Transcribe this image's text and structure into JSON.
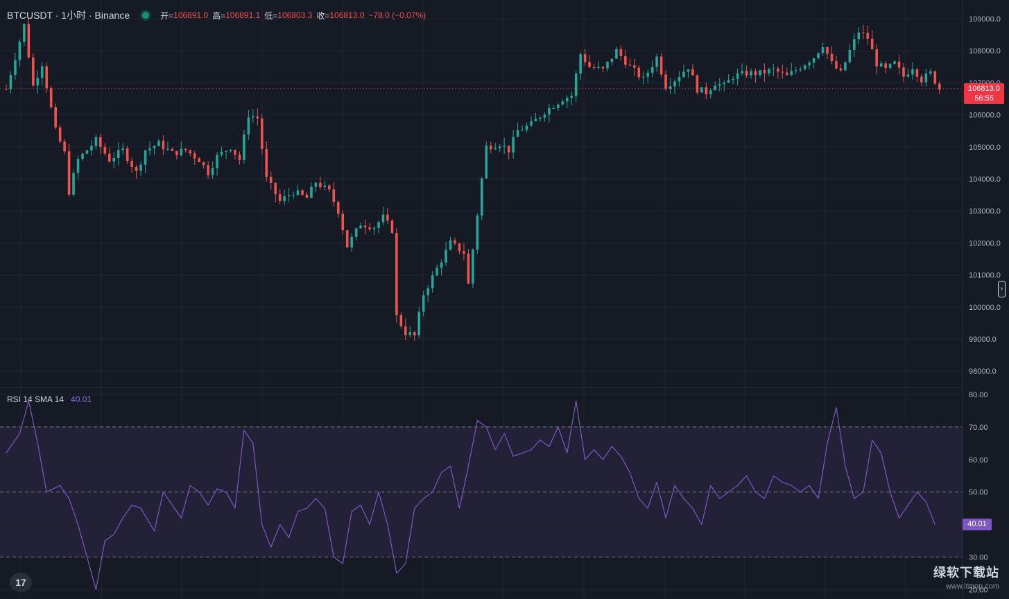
{
  "legend": {
    "symbol": "BTCUSDT · 1小时 · Binance",
    "open_label": "开=",
    "open": "106891.0",
    "high_label": "高=",
    "high": "106891.1",
    "low_label": "低=",
    "low": "106803.3",
    "close_label": "收=",
    "close": "106813.0",
    "change": "−78.0 (−0.07%)"
  },
  "last_price": {
    "price": "106813.0",
    "countdown": "56:55"
  },
  "rsi_legend": {
    "label": "RSI 14 SMA 14",
    "value": "40.01"
  },
  "rsi_tag": "40.01",
  "collapse_icon": "›",
  "logo_text": "17",
  "watermark": {
    "line1": "绿软下载站",
    "line2": "www.itmop.com"
  },
  "colors": {
    "up": "#26a69a",
    "down": "#ef5350",
    "rsi": "#7e57c2",
    "background": "#161a25"
  },
  "chart_data": [
    {
      "type": "candlestick",
      "title": "BTCUSDT · 1小时 · Binance",
      "ylim": [
        97700,
        109300
      ],
      "y_ticks": [
        "109000.0",
        "108000.0",
        "107000.0",
        "106000.0",
        "105000.0",
        "104000.0",
        "103000.0",
        "102000.0",
        "101000.0",
        "100000.0",
        "99000.0",
        "98000.0"
      ],
      "tick_values": [
        109000,
        108000,
        107000,
        106000,
        105000,
        104000,
        103000,
        102000,
        101000,
        100000,
        99000,
        98000
      ],
      "last_price": 106813.0,
      "path": [
        [
          0,
          106800
        ],
        [
          2,
          107800
        ],
        [
          4,
          108800
        ],
        [
          6,
          106900
        ],
        [
          8,
          107600
        ],
        [
          11,
          105500
        ],
        [
          13,
          104800
        ],
        [
          14,
          103600
        ],
        [
          16,
          104600
        ],
        [
          20,
          105200
        ],
        [
          23,
          104600
        ],
        [
          26,
          104900
        ],
        [
          29,
          104200
        ],
        [
          31,
          104900
        ],
        [
          34,
          105100
        ],
        [
          37,
          104800
        ],
        [
          40,
          104900
        ],
        [
          43,
          104600
        ],
        [
          45,
          104200
        ],
        [
          47,
          104700
        ],
        [
          50,
          105000
        ],
        [
          52,
          104600
        ],
        [
          54,
          106000
        ],
        [
          56,
          105900
        ],
        [
          58,
          104000
        ],
        [
          61,
          103300
        ],
        [
          64,
          103600
        ],
        [
          67,
          103400
        ],
        [
          69,
          103900
        ],
        [
          72,
          103600
        ],
        [
          74,
          103000
        ],
        [
          76,
          101900
        ],
        [
          79,
          102600
        ],
        [
          82,
          102500
        ],
        [
          84,
          102800
        ],
        [
          86,
          102400
        ],
        [
          87,
          99700
        ],
        [
          89,
          99200
        ],
        [
          91,
          99100
        ],
        [
          93,
          100400
        ],
        [
          96,
          101200
        ],
        [
          99,
          102000
        ],
        [
          102,
          101700
        ],
        [
          103,
          100700
        ],
        [
          105,
          102900
        ],
        [
          106,
          104000
        ],
        [
          107,
          105000
        ],
        [
          110,
          105100
        ],
        [
          112,
          104900
        ],
        [
          114,
          105500
        ],
        [
          117,
          105700
        ],
        [
          120,
          106100
        ],
        [
          122,
          106300
        ],
        [
          124,
          106500
        ],
        [
          126,
          106600
        ],
        [
          128,
          107900
        ],
        [
          130,
          107500
        ],
        [
          133,
          107400
        ],
        [
          136,
          108000
        ],
        [
          139,
          107500
        ],
        [
          142,
          107100
        ],
        [
          145,
          107800
        ],
        [
          147,
          106900
        ],
        [
          149,
          107100
        ],
        [
          152,
          107500
        ],
        [
          154,
          106800
        ],
        [
          156,
          106700
        ],
        [
          158,
          107000
        ],
        [
          160,
          106900
        ],
        [
          162,
          107200
        ],
        [
          165,
          107300
        ],
        [
          168,
          107300
        ],
        [
          171,
          107400
        ],
        [
          174,
          107200
        ],
        [
          177,
          107500
        ],
        [
          180,
          107800
        ],
        [
          182,
          108200
        ],
        [
          184,
          107600
        ],
        [
          186,
          107300
        ],
        [
          188,
          108000
        ],
        [
          190,
          108600
        ],
        [
          192,
          108400
        ],
        [
          194,
          107600
        ],
        [
          196,
          107400
        ],
        [
          198,
          107600
        ],
        [
          200,
          107200
        ],
        [
          202,
          107500
        ],
        [
          204,
          107100
        ],
        [
          206,
          107300
        ],
        [
          208,
          106813
        ]
      ]
    },
    {
      "type": "line",
      "title": "RSI 14 SMA 14",
      "ylim": [
        20,
        80
      ],
      "y_ticks": [
        "80.00",
        "70.00",
        "60.00",
        "50.00",
        "40.00",
        "30.00",
        "20.00"
      ],
      "tick_values": [
        80,
        70,
        60,
        50,
        40,
        30,
        20
      ],
      "bands": [
        30,
        50,
        70
      ],
      "x": [
        0,
        3,
        5,
        7,
        9,
        12,
        14,
        16,
        18,
        20,
        22,
        24,
        26,
        28,
        30,
        33,
        35,
        37,
        39,
        41,
        43,
        45,
        47,
        49,
        51,
        53,
        55,
        57,
        59,
        61,
        63,
        65,
        67,
        69,
        71,
        73,
        75,
        77,
        79,
        81,
        83,
        85,
        87,
        89,
        91,
        93,
        95,
        97,
        99,
        101,
        103,
        105,
        107,
        109,
        111,
        113,
        115,
        117,
        119,
        121,
        123,
        125,
        127,
        129,
        131,
        133,
        135,
        137,
        139,
        141,
        143,
        145,
        147,
        149,
        151,
        153,
        155,
        157,
        159,
        161,
        163,
        165,
        167,
        169,
        171,
        173,
        175,
        177,
        179,
        181,
        183,
        185,
        187,
        189,
        191,
        193,
        195,
        197,
        199,
        201,
        203,
        205,
        207
      ],
      "values": [
        62,
        68,
        78,
        65,
        50,
        52,
        48,
        40,
        30,
        20,
        35,
        37,
        42,
        46,
        45,
        38,
        50,
        46,
        42,
        52,
        50,
        46,
        51,
        50,
        45,
        69,
        65,
        40,
        33,
        40,
        36,
        44,
        45,
        48,
        45,
        30,
        28,
        44,
        46,
        40,
        50,
        40,
        25,
        28,
        45,
        48,
        50,
        56,
        58,
        45,
        58,
        72,
        70,
        63,
        68,
        61,
        62,
        63,
        66,
        64,
        70,
        62,
        78,
        60,
        63,
        60,
        64,
        61,
        56,
        48,
        45,
        53,
        42,
        52,
        48,
        45,
        40,
        52,
        48,
        50,
        52,
        55,
        50,
        48,
        55,
        53,
        52,
        50,
        52,
        48,
        65,
        76,
        58,
        48,
        50,
        66,
        62,
        50,
        42,
        46,
        50,
        47,
        40
      ]
    }
  ]
}
